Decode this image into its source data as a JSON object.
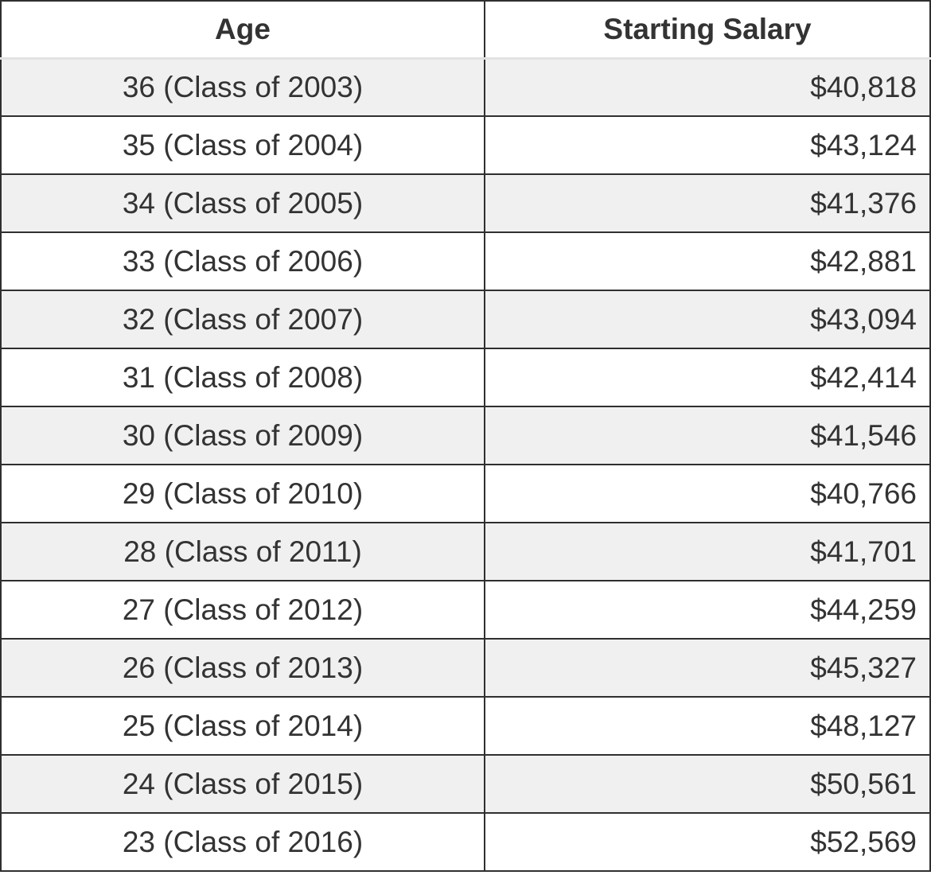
{
  "table": {
    "headers": {
      "age": "Age",
      "salary": "Starting Salary"
    },
    "rows": [
      {
        "age": "36 (Class of 2003)",
        "salary": "$40,818"
      },
      {
        "age": "35 (Class of 2004)",
        "salary": "$43,124"
      },
      {
        "age": "34 (Class of 2005)",
        "salary": "$41,376"
      },
      {
        "age": "33 (Class of 2006)",
        "salary": "$42,881"
      },
      {
        "age": "32 (Class of 2007)",
        "salary": "$43,094"
      },
      {
        "age": "31 (Class of 2008)",
        "salary": "$42,414"
      },
      {
        "age": "30 (Class of 2009)",
        "salary": "$41,546"
      },
      {
        "age": "29 (Class of 2010)",
        "salary": "$40,766"
      },
      {
        "age": "28 (Class of 2011)",
        "salary": "$41,701"
      },
      {
        "age": "27 (Class of 2012)",
        "salary": "$44,259"
      },
      {
        "age": "26 (Class of 2013)",
        "salary": "$45,327"
      },
      {
        "age": "25 (Class of 2014)",
        "salary": "$48,127"
      },
      {
        "age": "24 (Class of 2015)",
        "salary": "$50,561"
      },
      {
        "age": "23 (Class of 2016)",
        "salary": "$52,569"
      }
    ]
  },
  "colors": {
    "border": "#2f2f2f",
    "stripe": "#f0f0f0",
    "text": "#333333"
  }
}
